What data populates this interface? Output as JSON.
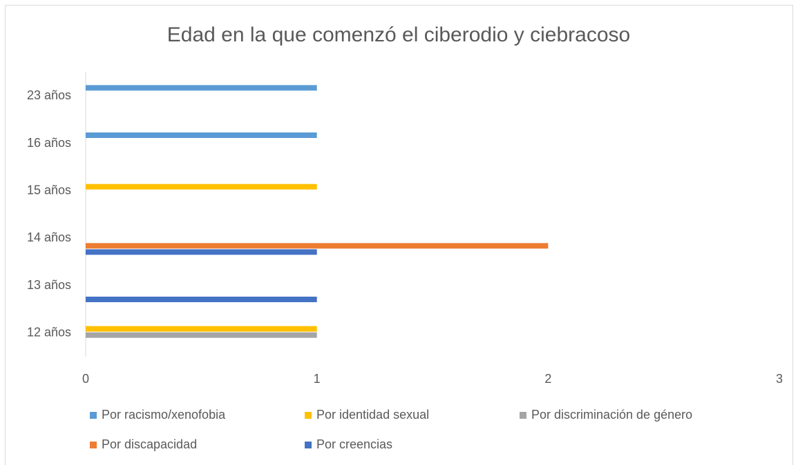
{
  "chart_data": {
    "type": "bar",
    "orientation": "horizontal",
    "title": "Edad en la que comenzó el ciberodio y ciebracoso",
    "categories": [
      "12 años",
      "13 años",
      "14 años",
      "15 años",
      "16 años",
      "23 años"
    ],
    "series": [
      {
        "name": "Por racismo/xenofobia",
        "color": "#5b9bd5",
        "values": [
          null,
          null,
          null,
          null,
          1,
          1
        ]
      },
      {
        "name": "Por identidad sexual",
        "color": "#ffc000",
        "values": [
          1,
          null,
          null,
          1,
          null,
          null
        ]
      },
      {
        "name": "Por discriminación de género",
        "color": "#a5a5a5",
        "values": [
          1,
          null,
          null,
          null,
          null,
          null
        ]
      },
      {
        "name": "Por discapacidad",
        "color": "#ed7d31",
        "values": [
          null,
          null,
          2,
          null,
          null,
          null
        ]
      },
      {
        "name": "Por creencias",
        "color": "#4472c4",
        "values": [
          null,
          1,
          1,
          null,
          null,
          null
        ]
      }
    ],
    "xlim": [
      0,
      3
    ],
    "xticks": [
      0,
      1,
      2,
      3
    ],
    "grid": false,
    "legend": "bottom"
  }
}
